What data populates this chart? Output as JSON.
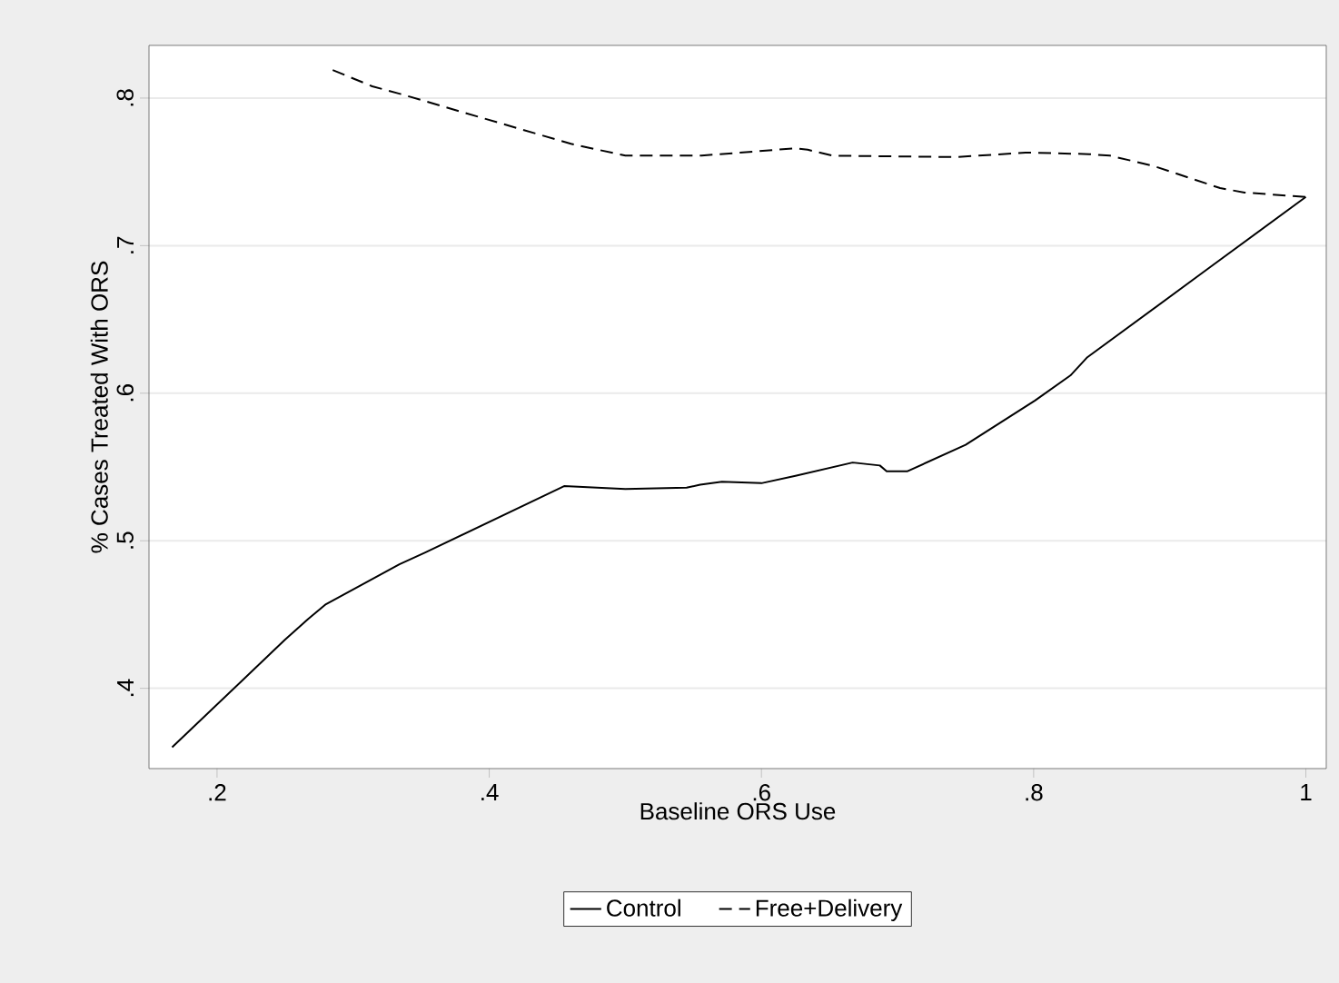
{
  "chart_data": {
    "type": "line",
    "xlabel": "Baseline ORS Use",
    "ylabel": "% Cases Treated With ORS",
    "xlim": [
      0.15,
      1.015
    ],
    "ylim": [
      0.3456,
      0.8357
    ],
    "xticks": [
      {
        "value": 0.2,
        "label": ".2"
      },
      {
        "value": 0.4,
        "label": ".4"
      },
      {
        "value": 0.6,
        "label": ".6"
      },
      {
        "value": 0.8,
        "label": ".8"
      },
      {
        "value": 1,
        "label": "1"
      }
    ],
    "yticks": [
      {
        "value": 0.4,
        "label": ".4"
      },
      {
        "value": 0.5,
        "label": ".5"
      },
      {
        "value": 0.6,
        "label": ".6"
      },
      {
        "value": 0.7,
        "label": ".7"
      },
      {
        "value": 0.8,
        "label": ".8"
      }
    ],
    "grid": "y",
    "legend": "bottom",
    "series": [
      {
        "name": "Control",
        "color": "#000000",
        "line_style": "solid",
        "x": [
          0.167,
          0.25,
          0.267,
          0.28,
          0.334,
          0.353,
          0.455,
          0.5,
          0.545,
          0.555,
          0.571,
          0.6,
          0.625,
          0.667,
          0.687,
          0.692,
          0.707,
          0.75,
          0.801,
          0.827,
          0.839,
          0.929,
          1.0
        ],
        "values": [
          0.36,
          0.433,
          0.447,
          0.457,
          0.484,
          0.492,
          0.537,
          0.535,
          0.536,
          0.538,
          0.54,
          0.539,
          0.544,
          0.553,
          0.551,
          0.547,
          0.547,
          0.565,
          0.595,
          0.612,
          0.624,
          0.685,
          0.733
        ]
      },
      {
        "name": "Free+Delivery",
        "color": "#000000",
        "line_style": "dashed",
        "x": [
          0.285,
          0.314,
          0.334,
          0.46,
          0.475,
          0.5,
          0.521,
          0.556,
          0.625,
          0.634,
          0.652,
          0.743,
          0.794,
          0.801,
          0.841,
          0.856,
          0.888,
          0.937,
          0.955,
          1.0
        ],
        "values": [
          0.819,
          0.808,
          0.803,
          0.769,
          0.766,
          0.761,
          0.761,
          0.761,
          0.766,
          0.765,
          0.761,
          0.76,
          0.763,
          0.763,
          0.762,
          0.761,
          0.754,
          0.739,
          0.736,
          0.733
        ]
      }
    ]
  }
}
